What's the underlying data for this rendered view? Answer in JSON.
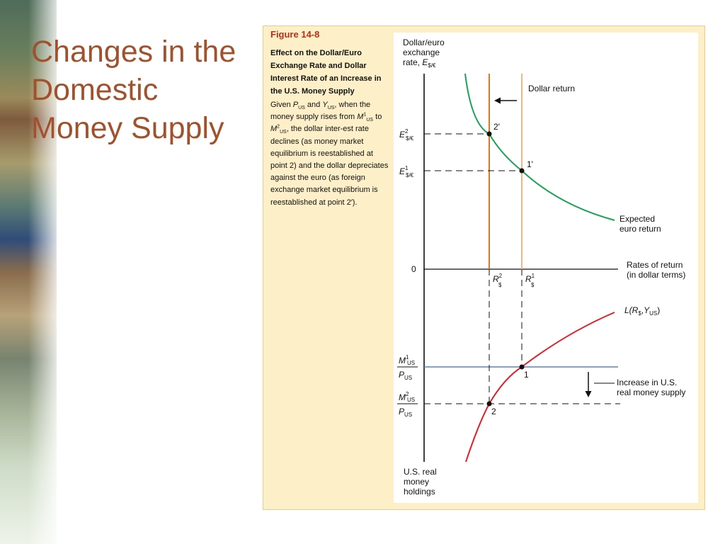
{
  "slide": {
    "title": "Changes in the Domestic Money Supply"
  },
  "figure": {
    "number": "Figure 14-8",
    "title": "Effect on the Dollar/Euro Exchange Rate and Dollar Interest Rate of an Increase in the U.S. Money Supply",
    "caption": {
      "t1": "Given ",
      "p": "P",
      "p_sub": "US",
      "t2": " and ",
      "y": "Y",
      "y_sub": "US",
      "t3": ", when the money supply rises from ",
      "m1": "M",
      "m1_sup": "1",
      "m1_sub": "US",
      "t4": " to ",
      "m2": "M",
      "m2_sup": "2",
      "m2_sub": "US",
      "t5": ", the dollar inter-est rate declines (as money market equilibrium is reestablished at point 2) and the dollar depreciates against the euro (as foreign exchange market equilibrium is reestablished at point 2′)."
    }
  },
  "diagram": {
    "y_axis_top": {
      "line1": "Dollar/euro",
      "line2": "exchange",
      "line3": "rate, ",
      "var": "E",
      "var_sub": "$/€"
    },
    "y_axis_bottom": {
      "line1": "U.S. real",
      "line2": "money",
      "line3": "holdings"
    },
    "x_axis": {
      "line1": "Rates of return",
      "line2": "(in dollar terms)"
    },
    "zero": "0",
    "dollar_return": "Dollar return",
    "expected_euro": {
      "line1": "Expected",
      "line2": "euro return"
    },
    "E2": {
      "var": "E",
      "sup": "2",
      "sub": "$/€"
    },
    "E1": {
      "var": "E",
      "sup": "1",
      "sub": "$/€"
    },
    "R2": {
      "var": "R",
      "sup": "2",
      "sub": "$"
    },
    "R1": {
      "var": "R",
      "sup": "1",
      "sub": "$"
    },
    "point_2p": "2'",
    "point_1p": "1'",
    "point_1": "1",
    "point_2": "2",
    "money_demand": {
      "l": "L(",
      "r": "R",
      "r_sub": "$",
      "comma": ",",
      "y": "Y",
      "y_sub": "US",
      "close": ")"
    },
    "m1_ratio": {
      "num": "M",
      "num_sup": "1",
      "num_sub": "US",
      "den": "P",
      "den_sub": "US"
    },
    "m2_ratio": {
      "num": "M",
      "num_sup": "2",
      "num_sub": "US",
      "den": "P",
      "den_sub": "US"
    },
    "increase": {
      "line1": "Increase in U.S.",
      "line2": "real money supply"
    }
  },
  "colors": {
    "title": "#a0522d",
    "panel": "#fdf0c8",
    "caption_title": "#b5301b",
    "dark_orange": "#e8731a",
    "light_orange": "#f4b580",
    "green": "#1aa356",
    "red": "#e0202a",
    "blue": "#5f83b6"
  }
}
